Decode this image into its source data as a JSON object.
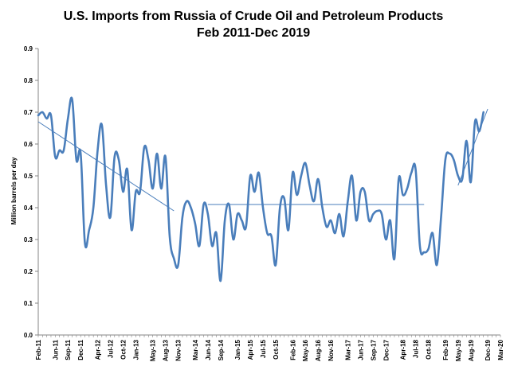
{
  "chart_data": {
    "type": "line",
    "title": "U.S. Imports from Russia of Crude Oil and Petroleum Products",
    "subtitle": "Feb 2011-Dec 2019",
    "xlabel": "",
    "ylabel": "Million barrels per day",
    "ylim": [
      0,
      0.9
    ],
    "yticks": [
      "0.0",
      "0.1",
      "0.2",
      "0.3",
      "0.4",
      "0.5",
      "0.6",
      "0.7",
      "0.8",
      "0.9"
    ],
    "grid": false,
    "legend": "none",
    "xticks": [
      "Feb-11",
      "Jun-11",
      "Sep-11",
      "Dec-11",
      "Apr-12",
      "Jul-12",
      "Oct-12",
      "Jan-13",
      "May-13",
      "Aug-13",
      "Nov-13",
      "Mar-14",
      "Jun-14",
      "Sep-14",
      "Jan-15",
      "Apr-15",
      "Jul-15",
      "Oct-15",
      "Feb-16",
      "May-16",
      "Aug-16",
      "Nov-16",
      "Mar-17",
      "Jun-17",
      "Sep-17",
      "Dec-17",
      "Apr-18",
      "Jul-18",
      "Oct-18",
      "Feb-19",
      "May-19",
      "Aug-19",
      "Dec-19",
      "Mar-20"
    ],
    "x_start": "2011-02",
    "x_end": "2020-03",
    "series": [
      {
        "color": "#4a7ebb",
        "values": [
          0.69,
          0.7,
          0.68,
          0.69,
          0.56,
          0.58,
          0.58,
          0.68,
          0.74,
          0.55,
          0.57,
          0.29,
          0.33,
          0.4,
          0.58,
          0.66,
          0.47,
          0.37,
          0.56,
          0.55,
          0.45,
          0.52,
          0.33,
          0.45,
          0.45,
          0.59,
          0.55,
          0.46,
          0.57,
          0.46,
          0.56,
          0.31,
          0.24,
          0.22,
          0.37,
          0.42,
          0.4,
          0.35,
          0.28,
          0.41,
          0.38,
          0.28,
          0.32,
          0.17,
          0.36,
          0.41,
          0.3,
          0.38,
          0.36,
          0.34,
          0.5,
          0.45,
          0.51,
          0.4,
          0.32,
          0.31,
          0.22,
          0.4,
          0.43,
          0.33,
          0.51,
          0.44,
          0.5,
          0.54,
          0.47,
          0.42,
          0.49,
          0.4,
          0.34,
          0.36,
          0.32,
          0.38,
          0.31,
          0.42,
          0.5,
          0.36,
          0.45,
          0.45,
          0.36,
          0.38,
          0.39,
          0.38,
          0.3,
          0.36,
          0.24,
          0.49,
          0.44,
          0.46,
          0.51,
          0.52,
          0.28,
          0.26,
          0.27,
          0.32,
          0.22,
          0.37,
          0.55,
          0.57,
          0.55,
          0.5,
          0.49,
          0.61,
          0.48,
          0.67,
          0.64,
          0.7
        ]
      }
    ],
    "trendlines": [
      {
        "color": "#4a7ebb",
        "from": {
          "x": "2011-02",
          "y": 0.67
        },
        "to": {
          "x": "2013-10",
          "y": 0.39
        }
      },
      {
        "color": "#4a7ebb",
        "from": {
          "x": "2014-06",
          "y": 0.41
        },
        "to": {
          "x": "2018-09",
          "y": 0.41
        }
      },
      {
        "color": "#4a7ebb",
        "from": {
          "x": "2019-05",
          "y": 0.47
        },
        "to": {
          "x": "2019-12",
          "y": 0.71
        }
      }
    ]
  }
}
